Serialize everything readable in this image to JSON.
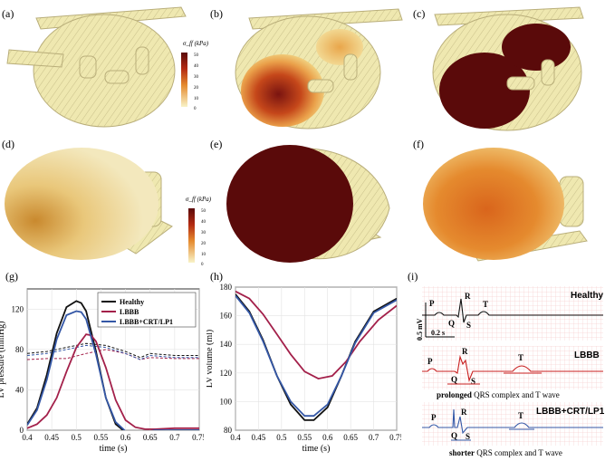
{
  "panels": {
    "a": "(a)",
    "b": "(b)",
    "c": "(c)",
    "d": "(d)",
    "e": "(e)",
    "f": "(f)",
    "g": "(g)",
    "h": "(h)",
    "i": "(i)"
  },
  "colorbars": [
    {
      "label": "σ_ff (kPa)",
      "ticks": [
        "50",
        "40",
        "30",
        "20",
        "10",
        "0"
      ]
    },
    {
      "label": "σ_ff (kPa)",
      "ticks": [
        "50",
        "40",
        "30",
        "20",
        "10",
        "0"
      ]
    }
  ],
  "colors": {
    "healthy": "#111111",
    "lbbb": "#a3204a",
    "crt": "#3457a6",
    "tissue": "#efe8b0",
    "stress_dark": "#5a0a0a",
    "ecg_grid": "#f2b3b3",
    "ecg_red": "#c81e1e"
  },
  "chart_data": [
    {
      "id": "g",
      "type": "line",
      "xlabel": "time (s)",
      "ylabel": "LV pressure (mmHg)",
      "xlim": [
        0.4,
        0.75
      ],
      "ylim": [
        0,
        140
      ],
      "xticks": [
        0.4,
        0.45,
        0.5,
        0.55,
        0.6,
        0.65,
        0.7,
        0.75
      ],
      "yticks": [
        0,
        40,
        80,
        120
      ],
      "legend": [
        "Healthy",
        "LBBB",
        "LBBB+CRT/LP1"
      ],
      "series": [
        {
          "name": "Healthy",
          "x": [
            0.4,
            0.42,
            0.44,
            0.46,
            0.48,
            0.5,
            0.51,
            0.52,
            0.54,
            0.56,
            0.58,
            0.6,
            0.62,
            0.64,
            0.66,
            0.7,
            0.75
          ],
          "values": [
            6,
            22,
            55,
            96,
            122,
            128,
            126,
            118,
            78,
            32,
            6,
            -2,
            -4,
            -3,
            -1,
            0,
            0
          ]
        },
        {
          "name": "LBBB",
          "x": [
            0.4,
            0.42,
            0.44,
            0.46,
            0.48,
            0.5,
            0.52,
            0.53,
            0.54,
            0.56,
            0.58,
            0.6,
            0.62,
            0.64,
            0.66,
            0.7,
            0.75
          ],
          "values": [
            2,
            6,
            15,
            32,
            58,
            82,
            95,
            94,
            88,
            62,
            30,
            10,
            3,
            1,
            1,
            2,
            2
          ]
        },
        {
          "name": "LBBB+CRT/LP1",
          "x": [
            0.4,
            0.42,
            0.44,
            0.46,
            0.48,
            0.5,
            0.51,
            0.52,
            0.54,
            0.56,
            0.58,
            0.6,
            0.62,
            0.64,
            0.66,
            0.7,
            0.75
          ],
          "values": [
            5,
            20,
            50,
            90,
            114,
            118,
            117,
            110,
            75,
            32,
            8,
            -1,
            -3,
            -2,
            0,
            0,
            0
          ]
        }
      ],
      "dashed_series": [
        {
          "name": "Healthy",
          "x": [
            0.4,
            0.44,
            0.48,
            0.52,
            0.56,
            0.6,
            0.63,
            0.65,
            0.7,
            0.75
          ],
          "values": [
            76,
            78,
            82,
            86,
            84,
            78,
            72,
            76,
            74,
            74
          ]
        },
        {
          "name": "LBBB",
          "x": [
            0.4,
            0.44,
            0.48,
            0.52,
            0.56,
            0.6,
            0.63,
            0.65,
            0.7,
            0.75
          ],
          "values": [
            70,
            71,
            71,
            76,
            80,
            76,
            70,
            72,
            71,
            71
          ]
        },
        {
          "name": "LBBB+CRT/LP1",
          "x": [
            0.4,
            0.44,
            0.48,
            0.52,
            0.56,
            0.6,
            0.63,
            0.65,
            0.7,
            0.75
          ],
          "values": [
            74,
            76,
            80,
            84,
            82,
            76,
            70,
            74,
            72,
            72
          ]
        }
      ]
    },
    {
      "id": "h",
      "type": "line",
      "xlabel": "time (s)",
      "ylabel": "LV volume (ml)",
      "xlim": [
        0.4,
        0.75
      ],
      "ylim": [
        80,
        180
      ],
      "xticks": [
        0.4,
        0.45,
        0.5,
        0.55,
        0.6,
        0.65,
        0.7,
        0.75
      ],
      "yticks": [
        80,
        100,
        120,
        140,
        160,
        180
      ],
      "series": [
        {
          "name": "Healthy",
          "x": [
            0.4,
            0.43,
            0.46,
            0.49,
            0.52,
            0.55,
            0.57,
            0.6,
            0.63,
            0.66,
            0.7,
            0.75
          ],
          "values": [
            175,
            163,
            143,
            118,
            98,
            87,
            87,
            96,
            118,
            142,
            163,
            172
          ]
        },
        {
          "name": "LBBB",
          "x": [
            0.4,
            0.43,
            0.46,
            0.49,
            0.52,
            0.55,
            0.58,
            0.61,
            0.64,
            0.67,
            0.71,
            0.75
          ],
          "values": [
            177,
            172,
            161,
            147,
            133,
            121,
            116,
            118,
            128,
            142,
            157,
            167
          ]
        },
        {
          "name": "LBBB+CRT/LP1",
          "x": [
            0.4,
            0.43,
            0.46,
            0.49,
            0.52,
            0.55,
            0.57,
            0.6,
            0.63,
            0.66,
            0.7,
            0.75
          ],
          "values": [
            174,
            162,
            142,
            118,
            100,
            90,
            90,
            98,
            118,
            141,
            162,
            171
          ]
        }
      ]
    }
  ],
  "ecg": {
    "healthy": {
      "title": "Healthy",
      "P": "P",
      "Q": "Q",
      "R": "R",
      "S": "S",
      "T": "T",
      "scale_v": "0.5 mV",
      "scale_t": "0.2 s"
    },
    "lbbb": {
      "title": "LBBB",
      "P": "P",
      "Q": "Q",
      "R": "R",
      "S": "S",
      "T": "T",
      "caption_bold": "prolonged",
      "caption_rest": " QRS complex and T wave"
    },
    "crt": {
      "title": "LBBB+CRT/LP1",
      "P": "P",
      "Q": "Q",
      "R": "R",
      "S": "S",
      "T": "T",
      "caption_bold": "shorter",
      "caption_rest": " QRS complex and T wave"
    }
  }
}
